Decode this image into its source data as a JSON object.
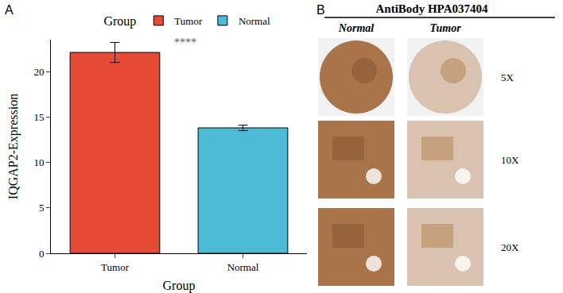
{
  "chart_data": {
    "type": "bar",
    "panel": "A",
    "categories": [
      "Tumor",
      "Normal"
    ],
    "values": [
      22.1,
      13.8
    ],
    "errors": [
      1.1,
      0.3
    ],
    "colors": [
      "#E64B35",
      "#4DBBD5"
    ],
    "xlabel": "Group",
    "ylabel": "IQGAP2-Expression",
    "legend": "top",
    "legend_title": "Group",
    "ylim": [
      0,
      23.5
    ],
    "yticks": [
      0,
      5,
      10,
      15,
      20
    ],
    "grid": false,
    "annotations": [
      "****"
    ]
  },
  "panel_b": {
    "panel": "B",
    "title": "AntiBody HPA037404",
    "columns": [
      "Normal",
      "Tumor"
    ],
    "rows": [
      "5X",
      "10X",
      "20X"
    ]
  }
}
